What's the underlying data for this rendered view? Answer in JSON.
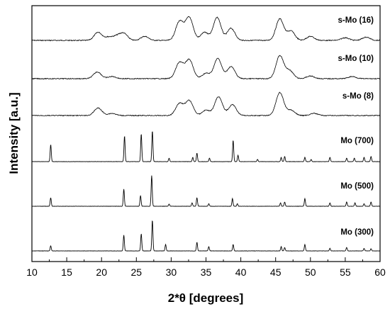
{
  "chart_data": {
    "type": "line",
    "xlabel": "2*θ [degrees]",
    "ylabel": "Intensity [a.u.]",
    "xlim": [
      10,
      60
    ],
    "xticks": [
      10,
      15,
      20,
      25,
      30,
      35,
      40,
      45,
      50,
      55,
      60
    ],
    "yticks": "none",
    "grid": false,
    "legend": "none; series labelled inline at right",
    "series": [
      {
        "name": "s-Mo (16)",
        "style": "broad",
        "peaks": [
          [
            19.5,
            0.3
          ],
          [
            21.0,
            0.12
          ],
          [
            22.2,
            0.15
          ],
          [
            23.2,
            0.25
          ],
          [
            26.2,
            0.15
          ],
          [
            31.2,
            0.7
          ],
          [
            32.6,
            0.85
          ],
          [
            34.8,
            0.3
          ],
          [
            36.6,
            0.85
          ],
          [
            38.6,
            0.45
          ],
          [
            45.6,
            0.8
          ],
          [
            47.2,
            0.35
          ],
          [
            50.0,
            0.15
          ],
          [
            55.0,
            0.1
          ],
          [
            58.0,
            0.12
          ]
        ]
      },
      {
        "name": "s-Mo (10)",
        "style": "broad",
        "peaks": [
          [
            19.4,
            0.25
          ],
          [
            21.5,
            0.08
          ],
          [
            31.2,
            0.6
          ],
          [
            32.6,
            0.7
          ],
          [
            35.0,
            0.2
          ],
          [
            36.7,
            0.75
          ],
          [
            38.6,
            0.45
          ],
          [
            45.6,
            0.85
          ],
          [
            47.0,
            0.3
          ],
          [
            50.0,
            0.1
          ],
          [
            56.0,
            0.08
          ]
        ]
      },
      {
        "name": "s-Mo (8)",
        "style": "broad",
        "peaks": [
          [
            19.5,
            0.28
          ],
          [
            21.5,
            0.08
          ],
          [
            31.2,
            0.45
          ],
          [
            32.6,
            0.55
          ],
          [
            35.0,
            0.2
          ],
          [
            36.8,
            0.7
          ],
          [
            38.8,
            0.4
          ],
          [
            45.6,
            0.85
          ],
          [
            47.2,
            0.2
          ],
          [
            50.5,
            0.08
          ]
        ]
      },
      {
        "name": "Mo (700)",
        "style": "sharp",
        "peaks": [
          [
            12.7,
            0.4
          ],
          [
            23.3,
            0.6
          ],
          [
            25.7,
            0.65
          ],
          [
            27.3,
            0.72
          ],
          [
            29.7,
            0.08
          ],
          [
            33.1,
            0.1
          ],
          [
            33.7,
            0.2
          ],
          [
            35.5,
            0.08
          ],
          [
            38.9,
            0.5
          ],
          [
            39.6,
            0.15
          ],
          [
            42.4,
            0.05
          ],
          [
            45.8,
            0.1
          ],
          [
            46.3,
            0.12
          ],
          [
            49.2,
            0.1
          ],
          [
            50.1,
            0.05
          ],
          [
            52.8,
            0.1
          ],
          [
            55.2,
            0.08
          ],
          [
            56.3,
            0.08
          ],
          [
            57.7,
            0.1
          ],
          [
            58.7,
            0.12
          ]
        ]
      },
      {
        "name": "Mo (500)",
        "style": "sharp",
        "peaks": [
          [
            12.7,
            0.2
          ],
          [
            23.2,
            0.4
          ],
          [
            25.6,
            0.25
          ],
          [
            27.2,
            0.72
          ],
          [
            29.7,
            0.05
          ],
          [
            33.0,
            0.08
          ],
          [
            33.7,
            0.2
          ],
          [
            35.4,
            0.06
          ],
          [
            38.8,
            0.18
          ],
          [
            39.5,
            0.06
          ],
          [
            45.7,
            0.08
          ],
          [
            46.3,
            0.1
          ],
          [
            49.2,
            0.18
          ],
          [
            52.8,
            0.08
          ],
          [
            55.2,
            0.1
          ],
          [
            56.4,
            0.08
          ],
          [
            57.7,
            0.06
          ],
          [
            58.7,
            0.1
          ]
        ]
      },
      {
        "name": "Mo (300)",
        "style": "sharp",
        "peaks": [
          [
            12.7,
            0.12
          ],
          [
            23.2,
            0.37
          ],
          [
            25.7,
            0.4
          ],
          [
            27.3,
            0.72
          ],
          [
            29.2,
            0.15
          ],
          [
            33.7,
            0.2
          ],
          [
            35.4,
            0.1
          ],
          [
            38.9,
            0.15
          ],
          [
            45.8,
            0.1
          ],
          [
            46.3,
            0.08
          ],
          [
            49.2,
            0.15
          ],
          [
            52.8,
            0.06
          ],
          [
            55.2,
            0.08
          ],
          [
            57.7,
            0.06
          ],
          [
            58.7,
            0.05
          ]
        ]
      }
    ]
  }
}
